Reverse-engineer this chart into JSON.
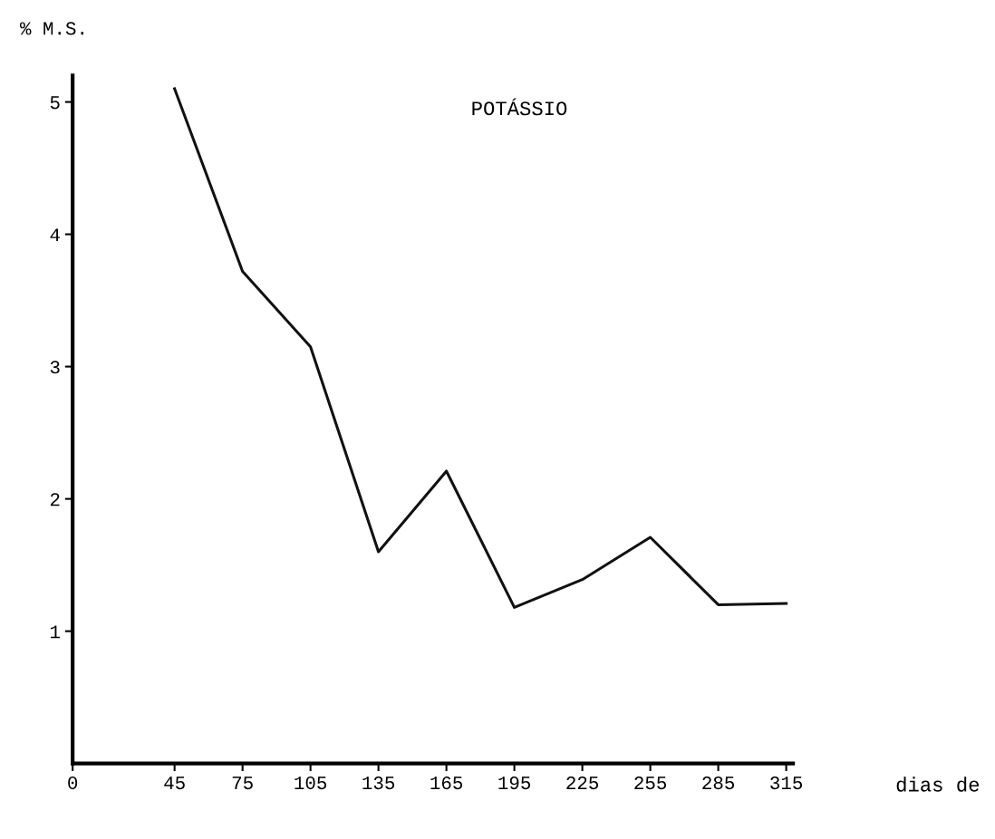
{
  "chart_data": {
    "type": "line",
    "title": "POTÁSSIO",
    "ylabel": "% M.S.",
    "xlabel": "dias de",
    "x": [
      45,
      75,
      105,
      135,
      165,
      195,
      225,
      255,
      285,
      315
    ],
    "series": [
      {
        "color": "#111111",
        "values": [
          5.1,
          3.72,
          3.15,
          1.6,
          2.21,
          1.18,
          1.39,
          1.71,
          1.2,
          1.21
        ]
      }
    ],
    "xlim": [
      0,
      318
    ],
    "xticks": [
      0,
      45,
      75,
      105,
      135,
      165,
      195,
      225,
      255,
      285,
      315
    ],
    "ylim": [
      0,
      5.2
    ],
    "yticks": [
      1,
      2,
      3,
      4,
      5
    ],
    "grid": false,
    "legend": false,
    "marker": "none",
    "line_style": "solid"
  }
}
